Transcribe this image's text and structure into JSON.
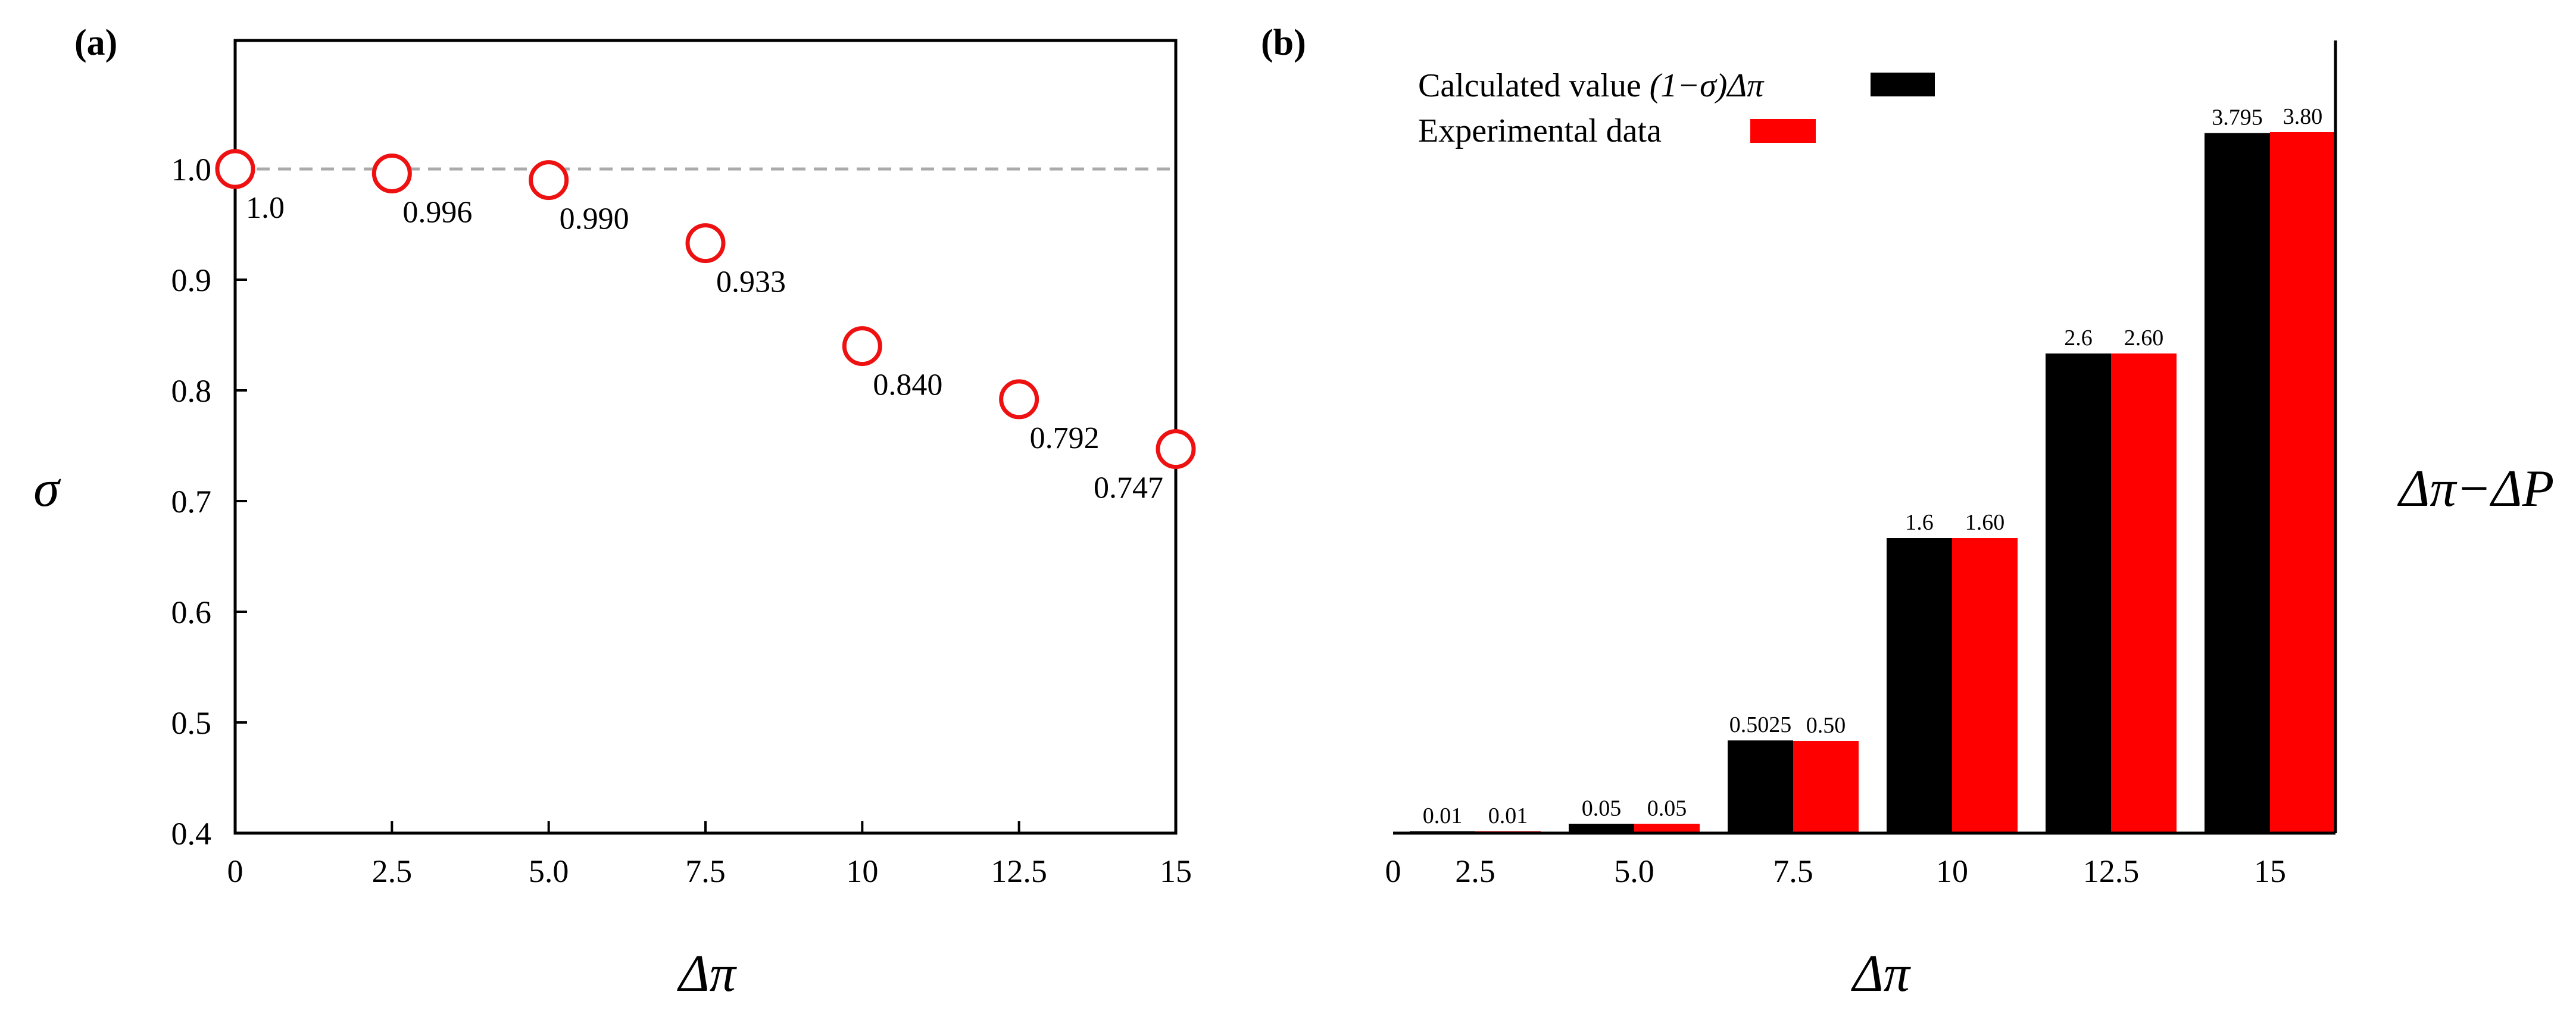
{
  "panels": {
    "a_label": "(a)",
    "b_label": "(b)"
  },
  "chart_data": [
    {
      "type": "scatter",
      "panel": "(a)",
      "xlabel": "Δπ",
      "ylabel": "σ",
      "xlim": [
        0,
        15
      ],
      "ylim": [
        0.4,
        1.1
      ],
      "xticks": [
        "0",
        "2.5",
        "5.0",
        "7.5",
        "10",
        "12.5",
        "15"
      ],
      "xtick_values": [
        0,
        2.5,
        5.0,
        7.5,
        10,
        12.5,
        15
      ],
      "yticks": [
        "0.4",
        "0.5",
        "0.6",
        "0.7",
        "0.8",
        "0.9",
        "1.0"
      ],
      "ytick_values": [
        0.4,
        0.5,
        0.6,
        0.7,
        0.8,
        0.9,
        1.0
      ],
      "reference_line": 1.0,
      "points": [
        {
          "x": 0,
          "y": 1.0,
          "label": "1.0"
        },
        {
          "x": 2.5,
          "y": 0.996,
          "label": "0.996"
        },
        {
          "x": 5.0,
          "y": 0.99,
          "label": "0.990"
        },
        {
          "x": 7.5,
          "y": 0.933,
          "label": "0.933"
        },
        {
          "x": 10,
          "y": 0.84,
          "label": "0.840"
        },
        {
          "x": 12.5,
          "y": 0.792,
          "label": "0.792"
        },
        {
          "x": 15,
          "y": 0.747,
          "label": "0.747"
        }
      ],
      "marker_color": "#ee1111"
    },
    {
      "type": "bar",
      "panel": "(b)",
      "xlabel": "Δπ",
      "ylabel": "Δπ−ΔP",
      "ylim": [
        0,
        4.2
      ],
      "origin_tick": "0",
      "categories": [
        "2.5",
        "5.0",
        "7.5",
        "10",
        "12.5",
        "15"
      ],
      "series": [
        {
          "name": "Calculated value (1−σ)Δπ",
          "color": "#000000",
          "values": [
            0.01,
            0.05,
            0.5025,
            1.6,
            2.6,
            3.795
          ],
          "labels": [
            "0.01",
            "0.05",
            "0.5025",
            "1.6",
            "2.6",
            "3.795"
          ]
        },
        {
          "name": "Experimental data",
          "color": "#ff0000",
          "values": [
            0.01,
            0.05,
            0.5,
            1.6,
            2.6,
            3.8
          ],
          "labels": [
            "0.01",
            "0.05",
            "0.50",
            "1.60",
            "2.60",
            "3.80"
          ]
        }
      ],
      "legend": {
        "placement": "top-left",
        "entries": [
          {
            "pre": "Calculated value ",
            "italic": "(1−σ)Δπ"
          },
          {
            "pre": "Experimental data",
            "italic": ""
          }
        ]
      }
    }
  ]
}
